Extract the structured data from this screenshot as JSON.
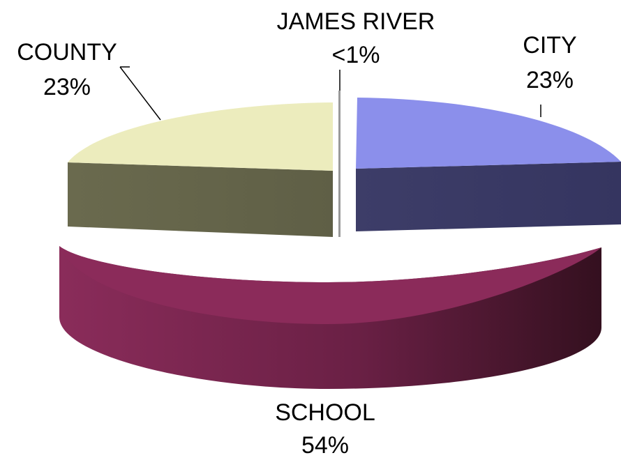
{
  "chart_data": {
    "type": "pie",
    "title": "",
    "style": "3d-exploded",
    "slices": [
      {
        "label": "SCHOOL",
        "value_label": "54%",
        "value": 54,
        "color": "#8b2b5a"
      },
      {
        "label": "COUNTY",
        "value_label": "23%",
        "value": 23,
        "color": "#ececbd"
      },
      {
        "label": "JAMES RIVER",
        "value_label": "<1%",
        "value": 0.5,
        "color": "#9a9a9a"
      },
      {
        "label": "CITY",
        "value_label": "23%",
        "value": 23,
        "color": "#8b8feb"
      }
    ],
    "legend": "none",
    "leader_lines": true
  }
}
